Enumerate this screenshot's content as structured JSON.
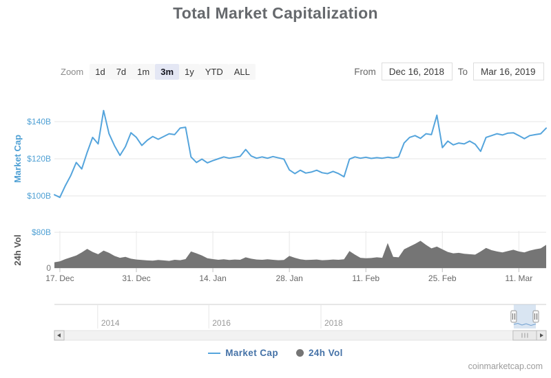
{
  "header": {
    "title": "Total Market Capitalization"
  },
  "controls": {
    "zoom_label": "Zoom",
    "zoom_buttons": [
      {
        "label": "1d",
        "selected": false
      },
      {
        "label": "7d",
        "selected": false
      },
      {
        "label": "1m",
        "selected": false
      },
      {
        "label": "3m",
        "selected": true
      },
      {
        "label": "1y",
        "selected": false
      },
      {
        "label": "YTD",
        "selected": false
      },
      {
        "label": "ALL",
        "selected": false
      }
    ],
    "from_label": "From",
    "from_value": "Dec 16, 2018",
    "to_label": "To",
    "to_value": "Mar 16, 2019"
  },
  "chart_data": {
    "type": "line",
    "title": "Total Market Capitalization",
    "date_range": [
      "Dec 16, 2018",
      "Mar 16, 2019"
    ],
    "x_unit": "day",
    "x_ticks": [
      {
        "day": 1,
        "label": "17. Dec"
      },
      {
        "day": 15,
        "label": "31. Dec"
      },
      {
        "day": 29,
        "label": "14. Jan"
      },
      {
        "day": 43,
        "label": "28. Jan"
      },
      {
        "day": 57,
        "label": "11. Feb"
      },
      {
        "day": 71,
        "label": "25. Feb"
      },
      {
        "day": 85,
        "label": "11. Mar"
      }
    ],
    "market_axis": {
      "title": "Market Cap",
      "color": "#4fa0d4",
      "ticks": [
        {
          "value": 100,
          "label": "$100B"
        },
        {
          "value": 120,
          "label": "$120B"
        },
        {
          "value": 140,
          "label": "$140B"
        }
      ]
    },
    "volume_axis": {
      "title": "24h Vol",
      "color": "#555555",
      "ticks": [
        {
          "value": 80,
          "label": "$80B"
        },
        {
          "value": 0,
          "label": "0"
        }
      ]
    },
    "series": [
      {
        "name": "Market Cap",
        "type": "line",
        "color": "#54a4dc",
        "unit": "billion USD",
        "values": [
          100.6,
          99.2,
          105.5,
          111.0,
          118.0,
          114.5,
          123.5,
          131.5,
          128.0,
          146.0,
          133.5,
          127.0,
          121.8,
          126.5,
          134.0,
          131.5,
          127.2,
          130.0,
          132.0,
          130.5,
          132.0,
          133.5,
          133.0,
          136.5,
          137.0,
          121.0,
          118.0,
          119.8,
          117.8,
          119.0,
          120.0,
          121.0,
          120.3,
          120.8,
          121.3,
          125.0,
          121.5,
          120.3,
          121.0,
          120.3,
          121.2,
          120.5,
          119.8,
          114.0,
          112.0,
          113.8,
          112.3,
          112.8,
          113.8,
          112.5,
          112.0,
          113.2,
          112.0,
          110.3,
          119.8,
          121.0,
          120.3,
          120.8,
          120.2,
          120.6,
          120.3,
          120.8,
          120.4,
          121.0,
          128.5,
          131.5,
          132.5,
          131.0,
          133.5,
          133.0,
          143.5,
          126.0,
          129.5,
          127.5,
          128.5,
          128.0,
          129.5,
          127.8,
          124.0,
          131.5,
          132.5,
          133.5,
          132.8,
          133.8,
          134.0,
          132.5,
          130.8,
          132.5,
          133.0,
          133.5,
          136.5
        ]
      },
      {
        "name": "24h Vol",
        "type": "area",
        "color": "#757575",
        "unit": "billion USD",
        "values": [
          13,
          15,
          20,
          24,
          28,
          35,
          43,
          36,
          31,
          39,
          34,
          27,
          23,
          25,
          21,
          19,
          18,
          17,
          16.5,
          18,
          17,
          16,
          18.5,
          17.5,
          20,
          37,
          33,
          28,
          22,
          20,
          18.5,
          19.5,
          18,
          19,
          18.5,
          24,
          21,
          19,
          18.5,
          19.5,
          18.5,
          17.5,
          18,
          27,
          23,
          19.5,
          18,
          18.5,
          19,
          17.5,
          18,
          19,
          18.5,
          19.5,
          38,
          30,
          23,
          22,
          22.5,
          24,
          23,
          56,
          25,
          24,
          42,
          48,
          54,
          61,
          52,
          44,
          48,
          42,
          36,
          33,
          34,
          32,
          31,
          30,
          37,
          45,
          40,
          37,
          35,
          38,
          41,
          37,
          35,
          39,
          42,
          44,
          52
        ]
      }
    ],
    "navigator": {
      "year_ticks": [
        {
          "pos": 0.088,
          "label": "2014"
        },
        {
          "pos": 0.314,
          "label": "2016"
        },
        {
          "pos": 0.542,
          "label": "2018"
        }
      ],
      "selection": [
        0.934,
        0.979
      ]
    },
    "grid": true,
    "legend_position": "bottom-center"
  },
  "legend": {
    "items": [
      {
        "label": "Market Cap",
        "marker": "line",
        "color": "#54a4dc"
      },
      {
        "label": "24h Vol",
        "marker": "circle",
        "color": "#757575"
      }
    ]
  },
  "attribution": "coinmarketcap.com",
  "colors": {
    "grid": "#e6e6e6",
    "axis_line": "#d0d0d0",
    "x_labels": "#666666",
    "nav_labels": "#999999",
    "selection_fill": "#b9d0e8",
    "scrollbar_track": "#f2f2f2",
    "scrollbar_button": "#ebebeb",
    "scrollbar_border": "#bbbbbb"
  }
}
